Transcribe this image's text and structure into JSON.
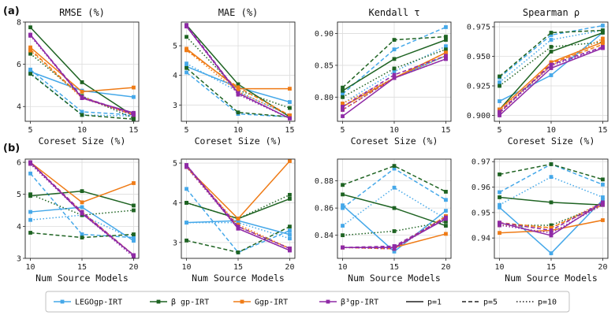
{
  "row_labels": [
    "(a)",
    "(b)"
  ],
  "colors": {
    "LEGOgp-IRT": "#45a8e9",
    "β gp-IRT": "#1e6322",
    "Ggp-IRT": "#ef7b16",
    "β³gp-IRT": "#8f2aa6"
  },
  "legend": {
    "methods": [
      "LEGOgp-IRT",
      "β gp-IRT",
      "Ggp-IRT",
      "β³gp-IRT"
    ],
    "styles": [
      {
        "label": "p=1",
        "dash": "solid"
      },
      {
        "label": "p=5",
        "dash": "dashed"
      },
      {
        "label": "p=10",
        "dash": "dotted"
      }
    ]
  },
  "chart_data": [
    {
      "type": "line",
      "row": 0,
      "col": 0,
      "title": "RMSE (%)",
      "xlabel": "Coreset Size (%)",
      "x": [
        5,
        10,
        15
      ],
      "ylim": [
        3.3,
        8.0
      ],
      "yticks": [
        4,
        6,
        8
      ],
      "series": [
        {
          "method": "LEGOgp-IRT",
          "p": 1,
          "values": [
            5.65,
            4.75,
            4.45
          ]
        },
        {
          "method": "LEGOgp-IRT",
          "p": 5,
          "values": [
            5.75,
            3.75,
            3.6
          ]
        },
        {
          "method": "LEGOgp-IRT",
          "p": 10,
          "values": [
            5.6,
            3.6,
            3.55
          ]
        },
        {
          "method": "β gp-IRT",
          "p": 1,
          "values": [
            7.75,
            5.15,
            3.55
          ]
        },
        {
          "method": "β gp-IRT",
          "p": 5,
          "values": [
            5.55,
            3.6,
            3.4
          ]
        },
        {
          "method": "β gp-IRT",
          "p": 10,
          "values": [
            6.5,
            4.5,
            3.45
          ]
        },
        {
          "method": "Ggp-IRT",
          "p": 1,
          "values": [
            6.8,
            4.7,
            4.9
          ]
        },
        {
          "method": "Ggp-IRT",
          "p": 5,
          "values": [
            6.7,
            4.45,
            3.6
          ]
        },
        {
          "method": "Ggp-IRT",
          "p": 10,
          "values": [
            6.65,
            4.4,
            3.65
          ]
        },
        {
          "method": "β³gp-IRT",
          "p": 1,
          "values": [
            7.4,
            4.4,
            3.7
          ]
        },
        {
          "method": "β³gp-IRT",
          "p": 5,
          "values": [
            7.4,
            4.45,
            3.65
          ]
        },
        {
          "method": "β³gp-IRT",
          "p": 10,
          "values": [
            7.35,
            4.4,
            3.6
          ]
        }
      ]
    },
    {
      "type": "line",
      "row": 0,
      "col": 1,
      "title": "MAE (%)",
      "xlabel": "Coreset Size (%)",
      "x": [
        5,
        10,
        15
      ],
      "ylim": [
        2.45,
        5.8
      ],
      "yticks": [
        3,
        4,
        5
      ],
      "series": [
        {
          "method": "LEGOgp-IRT",
          "p": 1,
          "values": [
            4.3,
            3.6,
            3.1
          ]
        },
        {
          "method": "LEGOgp-IRT",
          "p": 5,
          "values": [
            4.1,
            2.7,
            2.6
          ]
        },
        {
          "method": "LEGOgp-IRT",
          "p": 10,
          "values": [
            4.4,
            3.45,
            2.65
          ]
        },
        {
          "method": "β gp-IRT",
          "p": 1,
          "values": [
            5.7,
            3.7,
            2.6
          ]
        },
        {
          "method": "β gp-IRT",
          "p": 5,
          "values": [
            4.25,
            2.75,
            2.6
          ]
        },
        {
          "method": "β gp-IRT",
          "p": 10,
          "values": [
            5.3,
            3.5,
            2.9
          ]
        },
        {
          "method": "Ggp-IRT",
          "p": 1,
          "values": [
            4.9,
            3.55,
            3.55
          ]
        },
        {
          "method": "Ggp-IRT",
          "p": 5,
          "values": [
            4.85,
            3.6,
            2.65
          ]
        },
        {
          "method": "Ggp-IRT",
          "p": 10,
          "values": [
            4.85,
            3.45,
            2.65
          ]
        },
        {
          "method": "β³gp-IRT",
          "p": 1,
          "values": [
            5.65,
            3.4,
            2.55
          ]
        },
        {
          "method": "β³gp-IRT",
          "p": 5,
          "values": [
            5.7,
            3.4,
            2.55
          ]
        },
        {
          "method": "β³gp-IRT",
          "p": 10,
          "values": [
            5.65,
            3.35,
            2.55
          ]
        }
      ]
    },
    {
      "type": "line",
      "row": 0,
      "col": 2,
      "title": "Kendall τ",
      "xlabel": "Coreset Size (%)",
      "x": [
        5,
        10,
        15
      ],
      "ylim": [
        0.762,
        0.918
      ],
      "yticks": [
        0.8,
        0.85,
        0.9
      ],
      "ytick_labels": [
        "0.80",
        "0.85",
        "0.90"
      ],
      "series": [
        {
          "method": "LEGOgp-IRT",
          "p": 1,
          "values": [
            0.785,
            0.83,
            0.865
          ]
        },
        {
          "method": "LEGOgp-IRT",
          "p": 5,
          "values": [
            0.805,
            0.875,
            0.91
          ]
        },
        {
          "method": "LEGOgp-IRT",
          "p": 10,
          "values": [
            0.79,
            0.84,
            0.88
          ]
        },
        {
          "method": "β gp-IRT",
          "p": 1,
          "values": [
            0.81,
            0.86,
            0.89
          ]
        },
        {
          "method": "β gp-IRT",
          "p": 5,
          "values": [
            0.815,
            0.89,
            0.895
          ]
        },
        {
          "method": "β gp-IRT",
          "p": 10,
          "values": [
            0.8,
            0.845,
            0.875
          ]
        },
        {
          "method": "Ggp-IRT",
          "p": 1,
          "values": [
            0.785,
            0.83,
            0.87
          ]
        },
        {
          "method": "Ggp-IRT",
          "p": 5,
          "values": [
            0.78,
            0.83,
            0.87
          ]
        },
        {
          "method": "Ggp-IRT",
          "p": 10,
          "values": [
            0.79,
            0.83,
            0.865
          ]
        },
        {
          "method": "β³gp-IRT",
          "p": 1,
          "values": [
            0.77,
            0.83,
            0.86
          ]
        },
        {
          "method": "β³gp-IRT",
          "p": 5,
          "values": [
            0.785,
            0.835,
            0.865
          ]
        },
        {
          "method": "β³gp-IRT",
          "p": 10,
          "values": [
            0.78,
            0.83,
            0.86
          ]
        }
      ]
    },
    {
      "type": "line",
      "row": 0,
      "col": 3,
      "title": "Spearman ρ",
      "xlabel": "Coreset Size (%)",
      "x": [
        5,
        10,
        15
      ],
      "ylim": [
        0.895,
        0.979
      ],
      "yticks": [
        0.9,
        0.925,
        0.95,
        0.975
      ],
      "ytick_labels": [
        "0.900",
        "0.925",
        "0.950",
        "0.975"
      ],
      "series": [
        {
          "method": "LEGOgp-IRT",
          "p": 1,
          "values": [
            0.912,
            0.934,
            0.97
          ]
        },
        {
          "method": "LEGOgp-IRT",
          "p": 5,
          "values": [
            0.932,
            0.968,
            0.976
          ]
        },
        {
          "method": "LEGOgp-IRT",
          "p": 10,
          "values": [
            0.928,
            0.964,
            0.972
          ]
        },
        {
          "method": "β gp-IRT",
          "p": 1,
          "values": [
            0.905,
            0.954,
            0.97
          ]
        },
        {
          "method": "β gp-IRT",
          "p": 5,
          "values": [
            0.933,
            0.97,
            0.972
          ]
        },
        {
          "method": "β gp-IRT",
          "p": 10,
          "values": [
            0.925,
            0.958,
            0.962
          ]
        },
        {
          "method": "Ggp-IRT",
          "p": 1,
          "values": [
            0.905,
            0.945,
            0.962
          ]
        },
        {
          "method": "Ggp-IRT",
          "p": 5,
          "values": [
            0.902,
            0.944,
            0.96
          ]
        },
        {
          "method": "Ggp-IRT",
          "p": 10,
          "values": [
            0.904,
            0.942,
            0.965
          ]
        },
        {
          "method": "β³gp-IRT",
          "p": 1,
          "values": [
            0.9,
            0.94,
            0.957
          ]
        },
        {
          "method": "β³gp-IRT",
          "p": 5,
          "values": [
            0.903,
            0.943,
            0.958
          ]
        },
        {
          "method": "β³gp-IRT",
          "p": 10,
          "values": [
            0.902,
            0.942,
            0.957
          ]
        }
      ]
    },
    {
      "type": "line",
      "row": 1,
      "col": 0,
      "title": "",
      "xlabel": "Num Source Models",
      "x": [
        10,
        15,
        20
      ],
      "ylim": [
        3.0,
        6.1
      ],
      "yticks": [
        3,
        4,
        5,
        6
      ],
      "series": [
        {
          "method": "LEGOgp-IRT",
          "p": 1,
          "values": [
            4.45,
            4.6,
            3.55
          ]
        },
        {
          "method": "LEGOgp-IRT",
          "p": 5,
          "values": [
            5.65,
            3.75,
            3.65
          ]
        },
        {
          "method": "LEGOgp-IRT",
          "p": 10,
          "values": [
            4.2,
            4.35,
            3.6
          ]
        },
        {
          "method": "β gp-IRT",
          "p": 1,
          "values": [
            4.95,
            5.1,
            4.65
          ]
        },
        {
          "method": "β gp-IRT",
          "p": 5,
          "values": [
            3.8,
            3.65,
            3.75
          ]
        },
        {
          "method": "β gp-IRT",
          "p": 10,
          "values": [
            5.0,
            4.35,
            4.5
          ]
        },
        {
          "method": "Ggp-IRT",
          "p": 1,
          "values": [
            6.0,
            4.75,
            5.35
          ]
        },
        {
          "method": "Ggp-IRT",
          "p": 5,
          "values": [
            6.0,
            4.45,
            3.1
          ]
        },
        {
          "method": "Ggp-IRT",
          "p": 10,
          "values": [
            5.95,
            4.45,
            3.1
          ]
        },
        {
          "method": "β³gp-IRT",
          "p": 1,
          "values": [
            6.0,
            4.4,
            3.1
          ]
        },
        {
          "method": "β³gp-IRT",
          "p": 5,
          "values": [
            6.0,
            4.45,
            3.1
          ]
        },
        {
          "method": "β³gp-IRT",
          "p": 10,
          "values": [
            5.95,
            4.4,
            3.05
          ]
        }
      ]
    },
    {
      "type": "line",
      "row": 1,
      "col": 1,
      "title": "",
      "xlabel": "Num Source Models",
      "x": [
        10,
        15,
        20
      ],
      "ylim": [
        2.6,
        5.1
      ],
      "yticks": [
        3,
        4,
        5
      ],
      "series": [
        {
          "method": "LEGOgp-IRT",
          "p": 1,
          "values": [
            3.5,
            3.55,
            3.2
          ]
        },
        {
          "method": "LEGOgp-IRT",
          "p": 5,
          "values": [
            4.35,
            2.75,
            3.3
          ]
        },
        {
          "method": "LEGOgp-IRT",
          "p": 10,
          "values": [
            3.5,
            3.5,
            3.1
          ]
        },
        {
          "method": "β gp-IRT",
          "p": 1,
          "values": [
            4.0,
            3.6,
            4.1
          ]
        },
        {
          "method": "β gp-IRT",
          "p": 5,
          "values": [
            3.05,
            2.75,
            3.4
          ]
        },
        {
          "method": "β gp-IRT",
          "p": 10,
          "values": [
            4.0,
            3.6,
            4.2
          ]
        },
        {
          "method": "Ggp-IRT",
          "p": 1,
          "values": [
            4.9,
            3.6,
            5.05
          ]
        },
        {
          "method": "Ggp-IRT",
          "p": 5,
          "values": [
            4.9,
            3.4,
            2.85
          ]
        },
        {
          "method": "Ggp-IRT",
          "p": 10,
          "values": [
            4.9,
            3.45,
            2.85
          ]
        },
        {
          "method": "β³gp-IRT",
          "p": 1,
          "values": [
            4.95,
            3.35,
            2.8
          ]
        },
        {
          "method": "β³gp-IRT",
          "p": 5,
          "values": [
            4.95,
            3.4,
            2.85
          ]
        },
        {
          "method": "β³gp-IRT",
          "p": 10,
          "values": [
            4.9,
            3.35,
            2.8
          ]
        }
      ]
    },
    {
      "type": "line",
      "row": 1,
      "col": 2,
      "title": "",
      "xlabel": "Num Source Models",
      "x": [
        10,
        15,
        20
      ],
      "ylim": [
        0.823,
        0.896
      ],
      "yticks": [
        0.84,
        0.86,
        0.88
      ],
      "ytick_labels": [
        "0.84",
        "0.86",
        "0.88"
      ],
      "series": [
        {
          "method": "LEGOgp-IRT",
          "p": 1,
          "values": [
            0.862,
            0.828,
            0.858
          ]
        },
        {
          "method": "LEGOgp-IRT",
          "p": 5,
          "values": [
            0.86,
            0.889,
            0.866
          ]
        },
        {
          "method": "LEGOgp-IRT",
          "p": 10,
          "values": [
            0.847,
            0.875,
            0.852
          ]
        },
        {
          "method": "β gp-IRT",
          "p": 1,
          "values": [
            0.87,
            0.86,
            0.847
          ]
        },
        {
          "method": "β gp-IRT",
          "p": 5,
          "values": [
            0.877,
            0.891,
            0.872
          ]
        },
        {
          "method": "β gp-IRT",
          "p": 10,
          "values": [
            0.84,
            0.843,
            0.85
          ]
        },
        {
          "method": "Ggp-IRT",
          "p": 1,
          "values": [
            0.831,
            0.831,
            0.841
          ]
        },
        {
          "method": "Ggp-IRT",
          "p": 5,
          "values": [
            0.831,
            0.83,
            0.854
          ]
        },
        {
          "method": "Ggp-IRT",
          "p": 10,
          "values": [
            0.831,
            0.831,
            0.854
          ]
        },
        {
          "method": "β³gp-IRT",
          "p": 1,
          "values": [
            0.831,
            0.831,
            0.852
          ]
        },
        {
          "method": "β³gp-IRT",
          "p": 5,
          "values": [
            0.831,
            0.832,
            0.853
          ]
        },
        {
          "method": "β³gp-IRT",
          "p": 10,
          "values": [
            0.831,
            0.83,
            0.853
          ]
        }
      ]
    },
    {
      "type": "line",
      "row": 1,
      "col": 3,
      "title": "",
      "xlabel": "Num Source Models",
      "x": [
        10,
        15,
        20
      ],
      "ylim": [
        0.932,
        0.971
      ],
      "yticks": [
        0.94,
        0.95,
        0.96,
        0.97
      ],
      "ytick_labels": [
        "0.94",
        "0.95",
        "0.96",
        "0.97"
      ],
      "series": [
        {
          "method": "LEGOgp-IRT",
          "p": 1,
          "values": [
            0.952,
            0.934,
            0.955
          ]
        },
        {
          "method": "LEGOgp-IRT",
          "p": 5,
          "values": [
            0.958,
            0.969,
            0.961
          ]
        },
        {
          "method": "LEGOgp-IRT",
          "p": 10,
          "values": [
            0.953,
            0.964,
            0.956
          ]
        },
        {
          "method": "β gp-IRT",
          "p": 1,
          "values": [
            0.956,
            0.954,
            0.953
          ]
        },
        {
          "method": "β gp-IRT",
          "p": 5,
          "values": [
            0.965,
            0.969,
            0.963
          ]
        },
        {
          "method": "β gp-IRT",
          "p": 10,
          "values": [
            0.945,
            0.945,
            0.953
          ]
        },
        {
          "method": "Ggp-IRT",
          "p": 1,
          "values": [
            0.942,
            0.943,
            0.947
          ]
        },
        {
          "method": "Ggp-IRT",
          "p": 5,
          "values": [
            0.946,
            0.944,
            0.953
          ]
        },
        {
          "method": "Ggp-IRT",
          "p": 10,
          "values": [
            0.945,
            0.944,
            0.954
          ]
        },
        {
          "method": "β³gp-IRT",
          "p": 1,
          "values": [
            0.946,
            0.941,
            0.954
          ]
        },
        {
          "method": "β³gp-IRT",
          "p": 5,
          "values": [
            0.946,
            0.943,
            0.954
          ]
        },
        {
          "method": "β³gp-IRT",
          "p": 10,
          "values": [
            0.945,
            0.942,
            0.953
          ]
        }
      ]
    }
  ]
}
